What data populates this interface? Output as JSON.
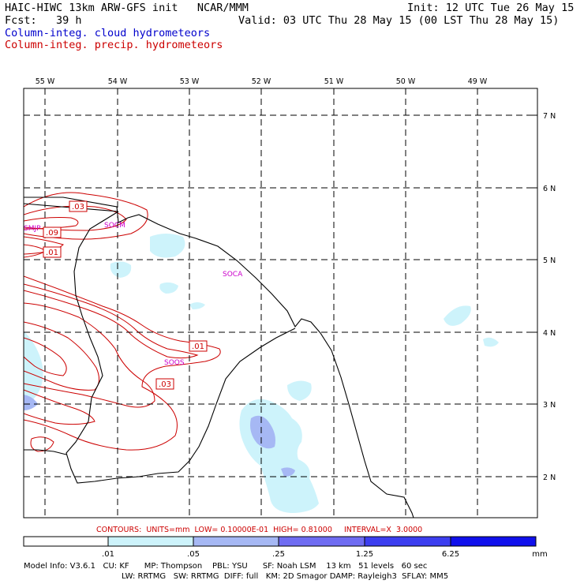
{
  "header": {
    "title": "HAIC-HIWC 13km ARW-GFS init   NCAR/MMM",
    "init": "Init: 12 UTC Tue 26 May 15",
    "fcst": "Fcst:   39 h",
    "valid": "Valid: 03 UTC Thu 28 May 15 (00 LST Thu 28 May 15)",
    "field1": "Column-integ. cloud hydrometeors",
    "field2": "Column-integ. precip. hydrometeors"
  },
  "map": {
    "lon_labels": [
      "55 W",
      "54 W",
      "53 W",
      "52 W",
      "51 W",
      "50 W",
      "49 W"
    ],
    "lat_labels": [
      "7 N",
      "6 N",
      "5 N",
      "4 N",
      "3 N",
      "2 N"
    ],
    "stations": [
      "SMJP",
      "SOCM",
      "SOCA",
      "SOOS"
    ],
    "contour_labels": [
      ".03",
      ".09",
      ".01",
      ".01",
      ".03"
    ]
  },
  "contours_info": "CONTOURS:  UNITS=mm  LOW= 0.10000E-01  HIGH= 0.81000     INTERVAL=X  3.0000",
  "colorbar": {
    "ticks": [
      ".01",
      ".05",
      ".25",
      "1.25",
      "6.25"
    ],
    "unit": "mm",
    "colors": [
      "#ffffff",
      "#cdf3fb",
      "#a6b8f4",
      "#6f6cf2",
      "#3c3ef0",
      "#1010ec"
    ]
  },
  "model_info": {
    "line1": "Model Info: V3.6.1   CU: KF      MP: Thompson    PBL: YSU      SF: Noah LSM    13 km   51 levels   60 sec",
    "line2": "LW: RRTMG   SW: RRTMG  DIFF: full   KM: 2D Smagor DAMP: Rayleigh3  SFLAY: MM5"
  }
}
